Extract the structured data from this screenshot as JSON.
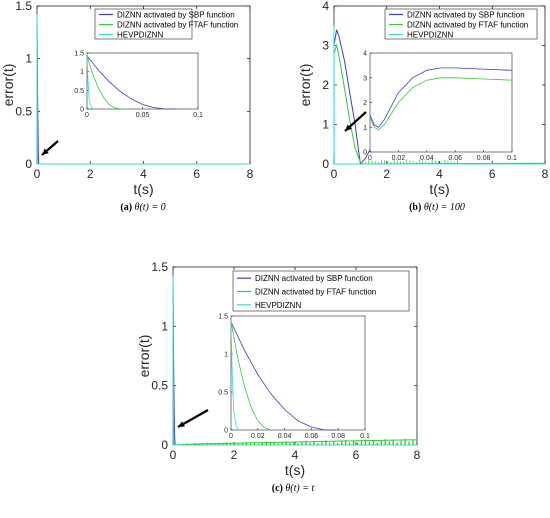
{
  "chart_data": [
    {
      "type": "line",
      "caption_label": "(a)",
      "caption_text": "θ(t) = 0",
      "xlabel": "t(s)",
      "ylabel": "error(t)",
      "xlim": [
        0,
        8
      ],
      "ylim": [
        0,
        1.5
      ],
      "xticks": [
        "0",
        "2",
        "4",
        "6",
        "8"
      ],
      "yticks": [
        "0",
        "0.5",
        "1",
        "1.5"
      ],
      "legend": [
        "DIZNN activated by SBP function",
        "DIZNN activated by FTAF function",
        "HEVPDIZNN"
      ],
      "series": [
        {
          "name": "DIZNN activated by SBP function",
          "color": "#3d3dcc",
          "x": [
            0,
            0.01,
            0.02,
            0.03,
            0.04,
            0.05,
            0.06,
            0.07,
            0.08
          ],
          "y": [
            1.42,
            1.05,
            0.73,
            0.47,
            0.27,
            0.12,
            0.04,
            0.0,
            0.0
          ]
        },
        {
          "name": "DIZNN activated by FTAF function",
          "color": "#33cc33",
          "x": [
            0,
            0.005,
            0.01,
            0.015,
            0.02,
            0.025,
            0.03,
            0.035,
            8
          ],
          "y": [
            1.42,
            0.95,
            0.58,
            0.3,
            0.12,
            0.03,
            0.0,
            0.0,
            0.0
          ]
        },
        {
          "name": "HEVPDIZNN",
          "color": "#33dddd",
          "x": [
            0,
            0.001,
            0.002,
            0.004,
            0.006,
            8
          ],
          "y": [
            1.42,
            0.7,
            0.25,
            0.04,
            0.0,
            0.0
          ]
        }
      ],
      "inset": {
        "xlim": [
          0,
          0.1
        ],
        "ylim": [
          0,
          1.5
        ],
        "xticks": [
          "0",
          "0.05",
          "0.1"
        ],
        "yticks": [
          "0",
          "0.5",
          "1",
          "1.5"
        ]
      }
    },
    {
      "type": "line",
      "caption_label": "(b)",
      "caption_text": "θ(t) = 100",
      "xlabel": "t(s)",
      "ylabel": "error(t)",
      "xlim": [
        0,
        8
      ],
      "ylim": [
        0,
        4
      ],
      "xticks": [
        "0",
        "2",
        "4",
        "6",
        "8"
      ],
      "yticks": [
        "0",
        "1",
        "2",
        "3",
        "4"
      ],
      "legend": [
        "DIZNN activated by SBP function",
        "DIZNN activated by FTAF function",
        "HEVPDIZNN"
      ],
      "series": [
        {
          "name": "DIZNN activated by SBP function",
          "color": "#3d3dcc",
          "x": [
            0,
            0.1,
            0.2,
            0.4,
            0.6,
            0.8,
            1.0,
            1.2,
            1.4,
            1.6,
            1.8
          ],
          "y": [
            3.0,
            3.4,
            3.2,
            2.6,
            1.8,
            1.0,
            0.0,
            0.15,
            0.4,
            0.7,
            0.9
          ]
        },
        {
          "name": "DIZNN activated by FTAF function",
          "color": "#33cc33",
          "x": [
            0,
            0.1,
            0.2,
            0.4,
            0.6,
            0.8,
            1.0,
            1.1,
            8
          ],
          "y": [
            2.8,
            3.0,
            2.7,
            1.9,
            1.1,
            0.4,
            0.05,
            0.0,
            0.02
          ]
        },
        {
          "name": "HEVPDIZNN",
          "color": "#33dddd",
          "x": [
            0,
            0.002,
            0.005,
            0.01,
            8
          ],
          "y": [
            3.5,
            1.5,
            0.3,
            0.0,
            0.0
          ]
        }
      ],
      "inset": {
        "xlim": [
          0,
          0.1
        ],
        "ylim": [
          0,
          4
        ],
        "xticks": [
          "0",
          "0.02",
          "0.04",
          "0.06",
          "0.08",
          "0.1"
        ],
        "yticks": [
          "0",
          "1",
          "2",
          "3",
          "4"
        ],
        "series": [
          {
            "name": "DIZNN activated by SBP function",
            "color": "#3d3dcc",
            "x": [
              0,
              0.003,
              0.006,
              0.01,
              0.02,
              0.03,
              0.04,
              0.05,
              0.06,
              0.08,
              0.1
            ],
            "y": [
              1.5,
              1.1,
              1.0,
              1.3,
              2.4,
              3.0,
              3.3,
              3.4,
              3.4,
              3.35,
              3.3
            ]
          },
          {
            "name": "DIZNN activated by FTAF function",
            "color": "#33cc33",
            "x": [
              0,
              0.003,
              0.006,
              0.01,
              0.02,
              0.03,
              0.04,
              0.05,
              0.06,
              0.08,
              0.1
            ],
            "y": [
              1.4,
              1.0,
              0.9,
              1.1,
              2.0,
              2.6,
              2.9,
              3.0,
              3.0,
              2.95,
              2.9
            ]
          }
        ]
      }
    },
    {
      "type": "line",
      "caption_label": "(c)",
      "caption_text": "θ(t) = t",
      "xlabel": "t(s)",
      "ylabel": "error(t)",
      "xlim": [
        0,
        8
      ],
      "ylim": [
        0,
        1.5
      ],
      "xticks": [
        "0",
        "2",
        "4",
        "6",
        "8"
      ],
      "yticks": [
        "0",
        "0.5",
        "1",
        "1.5"
      ],
      "legend": [
        "DIZNN activated by SBP function",
        "DIZNN activated by FTAF function",
        "HEVPDIZNN"
      ],
      "series": [
        {
          "name": "DIZNN activated by SBP function",
          "color": "#3d3dcc",
          "x": [
            0,
            0.01,
            0.02,
            0.03,
            0.04,
            0.05,
            0.06,
            0.07,
            0.08
          ],
          "y": [
            1.42,
            1.05,
            0.73,
            0.47,
            0.27,
            0.12,
            0.04,
            0.0,
            0.0
          ]
        },
        {
          "name": "DIZNN activated by FTAF function",
          "color": "#33cc33",
          "x": [
            0,
            0.005,
            0.01,
            0.015,
            0.02,
            0.025,
            0.03,
            1,
            2,
            3,
            4,
            5,
            6,
            7,
            8
          ],
          "y": [
            1.42,
            0.95,
            0.58,
            0.3,
            0.12,
            0.03,
            0.0,
            0.01,
            0.015,
            0.02,
            0.025,
            0.03,
            0.035,
            0.04,
            0.045
          ]
        },
        {
          "name": "HEVPDIZNN",
          "color": "#33dddd",
          "x": [
            0,
            0.001,
            0.002,
            0.004,
            0.006,
            8
          ],
          "y": [
            1.42,
            0.7,
            0.25,
            0.04,
            0.0,
            0.0
          ]
        }
      ],
      "inset": {
        "xlim": [
          0,
          0.1
        ],
        "ylim": [
          0,
          1.5
        ],
        "xticks": [
          "0",
          "0.02",
          "0.04",
          "0.06",
          "0.08",
          "0.1"
        ],
        "yticks": [
          "0",
          "0.5",
          "1",
          "1.5"
        ]
      }
    }
  ]
}
